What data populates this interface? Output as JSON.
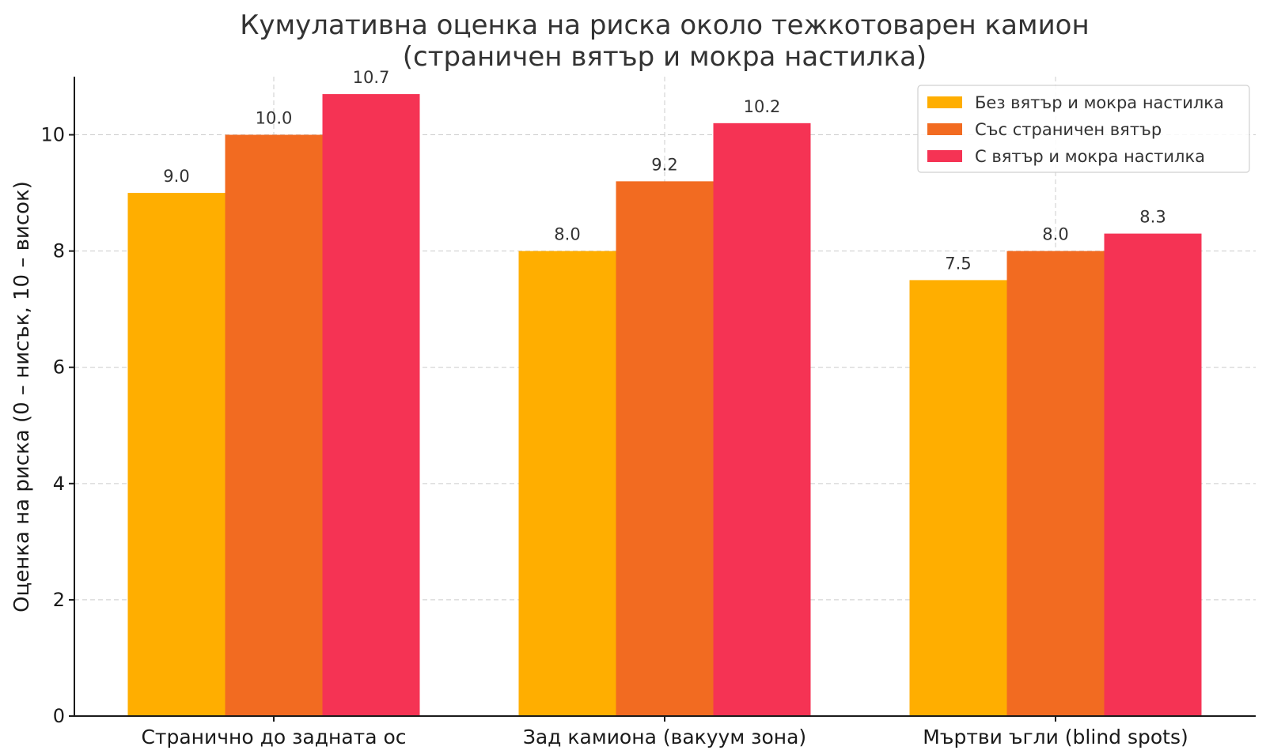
{
  "chart_data": {
    "type": "bar",
    "title_lines": [
      "Кумулативна оценка на риска около тежкотоварен камион",
      "(страничен вятър и мокра настилка)"
    ],
    "xlabel": "",
    "ylabel": "Оценка на риска (0 – нисък, 10 – висок)",
    "ylim": [
      0,
      11
    ],
    "yticks": [
      0,
      2,
      4,
      6,
      8,
      10
    ],
    "grid": true,
    "legend_position": "top-right",
    "categories": [
      "Странично до задната ос",
      "Зад камиона (вакуум зона)",
      "Мъртви ъгли (blind spots)"
    ],
    "series": [
      {
        "name": "Без вятър и мокра настилка",
        "color": "#FFAE00",
        "values": [
          9.0,
          8.0,
          7.5
        ],
        "labels": [
          "9.0",
          "8.0",
          "7.5"
        ]
      },
      {
        "name": "Със страничен вятър",
        "color": "#F26B21",
        "values": [
          10.0,
          9.2,
          8.0
        ],
        "labels": [
          "10.0",
          "9.2",
          "8.0"
        ]
      },
      {
        "name": "С вятър и мокра настилка",
        "color": "#F53354",
        "values": [
          10.7,
          10.2,
          8.3
        ],
        "labels": [
          "10.7",
          "10.2",
          "8.3"
        ]
      }
    ]
  }
}
